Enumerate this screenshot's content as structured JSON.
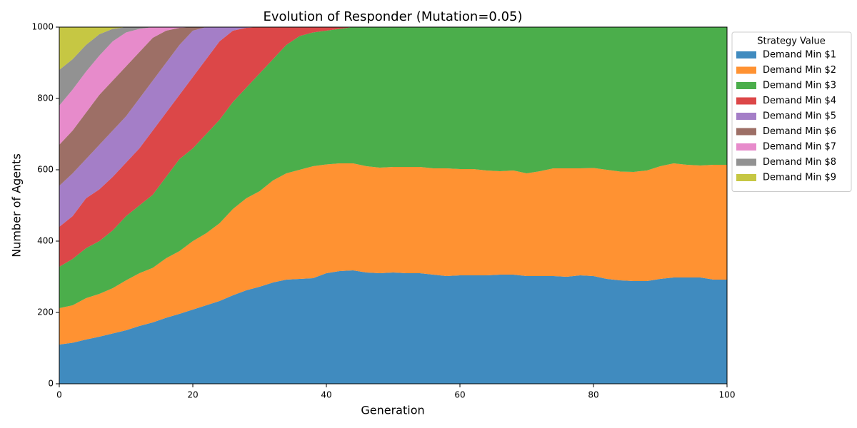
{
  "chart_data": {
    "type": "stacked_area",
    "title": "Evolution of Responder (Mutation=0.05)",
    "x_label": "Generation",
    "y_label": "Number of Agents",
    "legend_title": "Strategy Value",
    "legend": "outside upper right",
    "xlim": [
      0,
      100
    ],
    "xticks": [
      0,
      20,
      40,
      60,
      80,
      100
    ],
    "ylim": [
      0,
      1000
    ],
    "yticks": [
      0,
      200,
      400,
      600,
      800,
      1000
    ],
    "grid": false,
    "opacity": 0.85,
    "x": [
      0,
      2,
      4,
      6,
      8,
      10,
      12,
      14,
      16,
      18,
      20,
      22,
      24,
      26,
      28,
      30,
      32,
      34,
      36,
      38,
      40,
      42,
      44,
      46,
      48,
      50,
      52,
      54,
      56,
      58,
      60,
      62,
      64,
      66,
      68,
      70,
      72,
      74,
      76,
      78,
      80,
      82,
      84,
      86,
      88,
      90,
      92,
      94,
      96,
      98,
      100
    ],
    "series": [
      {
        "name": "Demand Min $1",
        "color": "#1f77b4",
        "values": [
          110,
          115,
          124,
          132,
          141,
          150,
          162,
          172,
          185,
          196,
          208,
          220,
          232,
          248,
          262,
          272,
          284,
          292,
          294,
          296,
          310,
          316,
          318,
          312,
          310,
          312,
          310,
          310,
          306,
          302,
          304,
          304,
          304,
          306,
          306,
          302,
          302,
          302,
          300,
          304,
          302,
          294,
          290,
          288,
          288,
          294,
          298,
          298,
          298,
          292,
          292
        ]
      },
      {
        "name": "Demand Min $2",
        "color": "#ff7f0e",
        "values": [
          102,
          105,
          116,
          120,
          127,
          140,
          148,
          153,
          167,
          176,
          192,
          202,
          218,
          242,
          258,
          268,
          286,
          298,
          306,
          314,
          305,
          302,
          300,
          298,
          296,
          296,
          298,
          298,
          298,
          302,
          298,
          298,
          294,
          290,
          292,
          288,
          294,
          302,
          304,
          300,
          303,
          306,
          305,
          306,
          310,
          316,
          320,
          316,
          314,
          322,
          322
        ]
      },
      {
        "name": "Demand Min $3",
        "color": "#2ca02c",
        "values": [
          116,
          130,
          140,
          148,
          162,
          180,
          190,
          205,
          228,
          258,
          260,
          278,
          290,
          300,
          310,
          330,
          340,
          360,
          375,
          375,
          375,
          377,
          382,
          390,
          394,
          392,
          392,
          392,
          396,
          396,
          398,
          398,
          402,
          404,
          402,
          410,
          404,
          396,
          396,
          396,
          395,
          400,
          405,
          406,
          402,
          390,
          382,
          386,
          388,
          386,
          386
        ]
      },
      {
        "name": "Demand Min $4",
        "color": "#d62728",
        "values": [
          112,
          120,
          140,
          145,
          150,
          150,
          160,
          180,
          180,
          180,
          200,
          210,
          220,
          200,
          168,
          130,
          90,
          50,
          25,
          15,
          10,
          5,
          0,
          0,
          0,
          0,
          0,
          0,
          0,
          0,
          0,
          0,
          0,
          0,
          0,
          0,
          0,
          0,
          0,
          0,
          0,
          0,
          0,
          0,
          0,
          0,
          0,
          0,
          0,
          0,
          0
        ]
      },
      {
        "name": "Demand Min $5",
        "color": "#9467bd",
        "values": [
          115,
          120,
          110,
          125,
          130,
          130,
          140,
          140,
          140,
          140,
          130,
          90,
          40,
          10,
          2,
          0,
          0,
          0,
          0,
          0,
          0,
          0,
          0,
          0,
          0,
          0,
          0,
          0,
          0,
          0,
          0,
          0,
          0,
          0,
          0,
          0,
          0,
          0,
          0,
          0,
          0,
          0,
          0,
          0,
          0,
          0,
          0,
          0,
          0,
          0,
          0
        ]
      },
      {
        "name": "Demand Min $6",
        "color": "#8c564b",
        "values": [
          115,
          120,
          130,
          140,
          140,
          140,
          130,
          120,
          90,
          48,
          10,
          0,
          0,
          0,
          0,
          0,
          0,
          0,
          0,
          0,
          0,
          0,
          0,
          0,
          0,
          0,
          0,
          0,
          0,
          0,
          0,
          0,
          0,
          0,
          0,
          0,
          0,
          0,
          0,
          0,
          0,
          0,
          0,
          0,
          0,
          0,
          0,
          0,
          0,
          0,
          0
        ]
      },
      {
        "name": "Demand Min $7",
        "color": "#e377c2",
        "values": [
          110,
          115,
          115,
          110,
          110,
          95,
          65,
          30,
          10,
          2,
          0,
          0,
          0,
          0,
          0,
          0,
          0,
          0,
          0,
          0,
          0,
          0,
          0,
          0,
          0,
          0,
          0,
          0,
          0,
          0,
          0,
          0,
          0,
          0,
          0,
          0,
          0,
          0,
          0,
          0,
          0,
          0,
          0,
          0,
          0,
          0,
          0,
          0,
          0,
          0,
          0
        ]
      },
      {
        "name": "Demand Min $8",
        "color": "#7f7f7f",
        "values": [
          100,
          85,
          75,
          60,
          35,
          15,
          5,
          0,
          0,
          0,
          0,
          0,
          0,
          0,
          0,
          0,
          0,
          0,
          0,
          0,
          0,
          0,
          0,
          0,
          0,
          0,
          0,
          0,
          0,
          0,
          0,
          0,
          0,
          0,
          0,
          0,
          0,
          0,
          0,
          0,
          0,
          0,
          0,
          0,
          0,
          0,
          0,
          0,
          0,
          0,
          0
        ]
      },
      {
        "name": "Demand Min $9",
        "color": "#bcbd22",
        "values": [
          120,
          90,
          50,
          20,
          5,
          0,
          0,
          0,
          0,
          0,
          0,
          0,
          0,
          0,
          0,
          0,
          0,
          0,
          0,
          0,
          0,
          0,
          0,
          0,
          0,
          0,
          0,
          0,
          0,
          0,
          0,
          0,
          0,
          0,
          0,
          0,
          0,
          0,
          0,
          0,
          0,
          0,
          0,
          0,
          0,
          0,
          0,
          0,
          0,
          0,
          0
        ]
      }
    ]
  }
}
